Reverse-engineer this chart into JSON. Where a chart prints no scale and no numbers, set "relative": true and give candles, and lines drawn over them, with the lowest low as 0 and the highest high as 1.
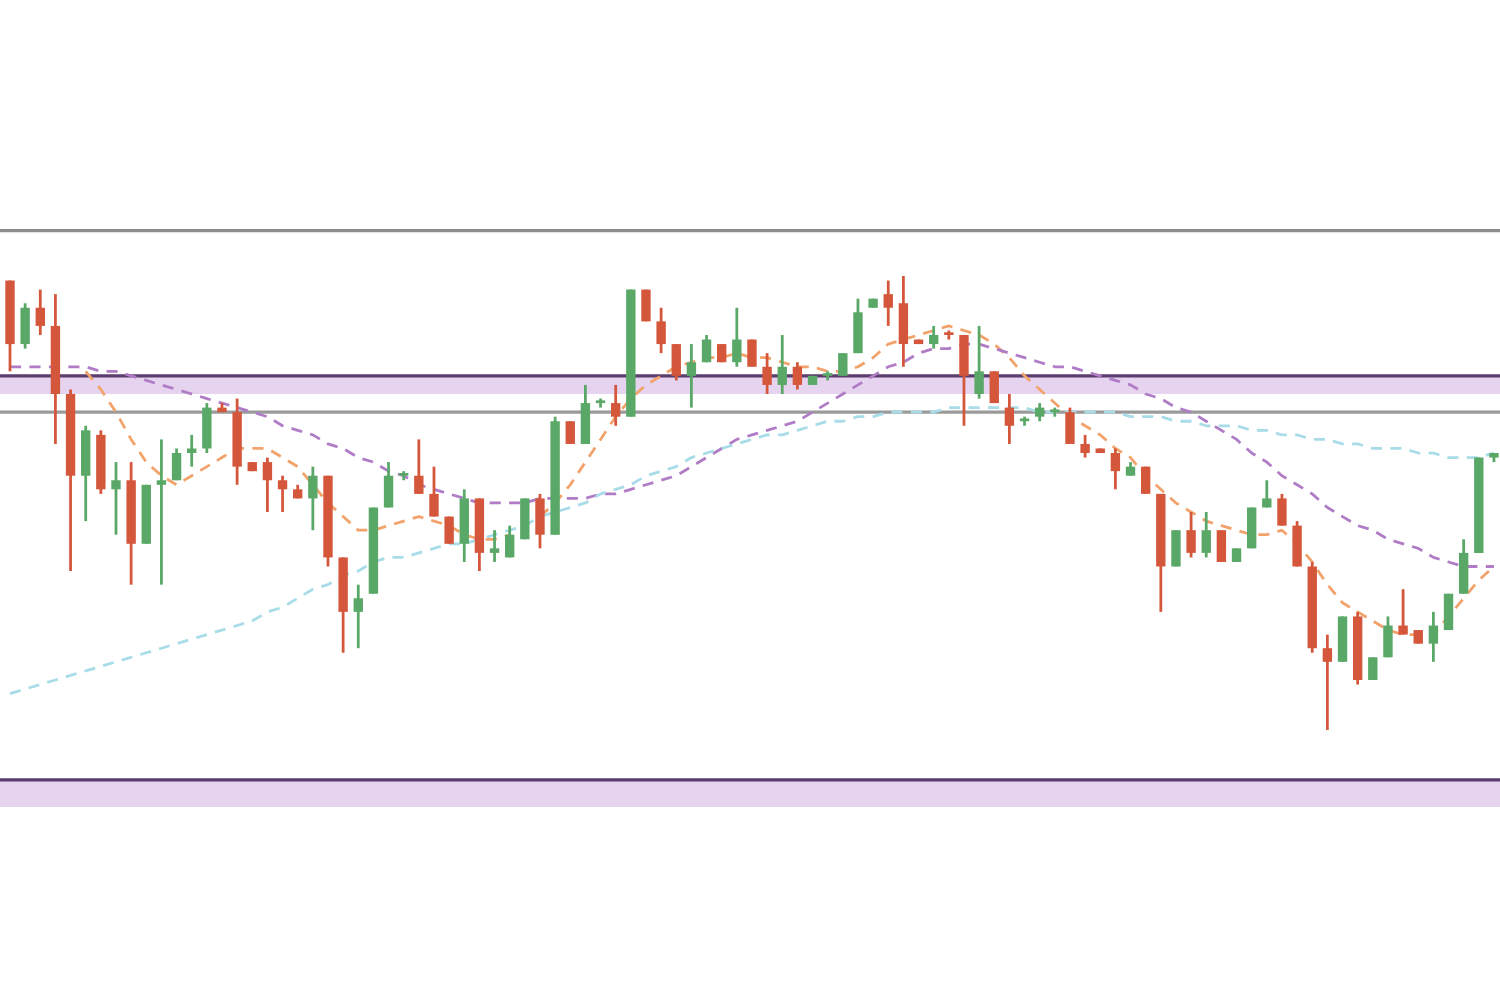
{
  "chart_data": {
    "type": "candlestick",
    "relative": true,
    "categories": [
      null,
      null,
      null,
      null,
      null,
      null,
      null,
      null,
      null,
      null,
      null,
      null,
      null,
      null,
      null,
      null,
      null,
      null,
      null,
      null,
      null,
      null,
      null,
      null,
      null,
      null,
      null,
      null,
      null,
      null,
      null,
      null,
      null,
      null,
      null,
      null,
      null,
      null,
      null,
      null,
      null,
      null,
      null,
      null,
      null,
      null,
      null,
      null,
      null,
      null,
      null,
      null,
      null,
      null,
      null,
      null,
      null,
      null,
      null,
      null,
      null,
      null,
      null,
      null,
      null,
      null,
      null,
      null,
      null,
      null,
      null,
      null,
      null,
      null,
      null,
      null,
      null,
      null,
      null,
      null,
      null,
      null,
      null,
      null,
      null,
      null,
      null,
      null,
      null,
      null,
      null,
      null,
      null,
      null,
      null,
      null,
      null,
      null,
      null
    ],
    "ohlc": [
      [
        0.99,
        0.99,
        0.79,
        0.85
      ],
      [
        0.85,
        0.94,
        0.84,
        0.93
      ],
      [
        0.93,
        0.97,
        0.87,
        0.89
      ],
      [
        0.89,
        0.96,
        0.63,
        0.74
      ],
      [
        0.74,
        0.75,
        0.35,
        0.56
      ],
      [
        0.56,
        0.67,
        0.46,
        0.66
      ],
      [
        0.65,
        0.66,
        0.52,
        0.53
      ],
      [
        0.53,
        0.59,
        0.43,
        0.55
      ],
      [
        0.55,
        0.59,
        0.32,
        0.41
      ],
      [
        0.41,
        0.54,
        0.41,
        0.54
      ],
      [
        0.54,
        0.64,
        0.32,
        0.55
      ],
      [
        0.55,
        0.62,
        0.55,
        0.61
      ],
      [
        0.61,
        0.65,
        0.58,
        0.62
      ],
      [
        0.62,
        0.72,
        0.61,
        0.71
      ],
      [
        0.71,
        0.72,
        0.7,
        0.7
      ],
      [
        0.7,
        0.73,
        0.54,
        0.58
      ],
      [
        0.59,
        0.59,
        0.57,
        0.57
      ],
      [
        0.59,
        0.6,
        0.48,
        0.55
      ],
      [
        0.55,
        0.56,
        0.48,
        0.53
      ],
      [
        0.53,
        0.54,
        0.51,
        0.51
      ],
      [
        0.51,
        0.58,
        0.44,
        0.56
      ],
      [
        0.56,
        0.56,
        0.36,
        0.38
      ],
      [
        0.38,
        0.38,
        0.17,
        0.26
      ],
      [
        0.26,
        0.32,
        0.18,
        0.29
      ],
      [
        0.3,
        0.49,
        0.3,
        0.49
      ],
      [
        0.49,
        0.59,
        0.49,
        0.56
      ],
      [
        0.56,
        0.57,
        0.55,
        0.56
      ],
      [
        0.56,
        0.64,
        0.52,
        0.52
      ],
      [
        0.52,
        0.58,
        0.47,
        0.47
      ],
      [
        0.47,
        0.47,
        0.41,
        0.41
      ],
      [
        0.41,
        0.53,
        0.37,
        0.51
      ],
      [
        0.51,
        0.51,
        0.35,
        0.39
      ],
      [
        0.39,
        0.44,
        0.37,
        0.4
      ],
      [
        0.38,
        0.45,
        0.38,
        0.43
      ],
      [
        0.42,
        0.51,
        0.42,
        0.51
      ],
      [
        0.51,
        0.52,
        0.4,
        0.43
      ],
      [
        0.43,
        0.69,
        0.43,
        0.68
      ],
      [
        0.68,
        0.68,
        0.63,
        0.63
      ],
      [
        0.63,
        0.76,
        0.63,
        0.72
      ],
      [
        0.72,
        0.73,
        0.71,
        0.72
      ],
      [
        0.72,
        0.76,
        0.67,
        0.69
      ],
      [
        0.69,
        0.97,
        0.69,
        0.97
      ],
      [
        0.97,
        0.97,
        0.9,
        0.9
      ],
      [
        0.9,
        0.93,
        0.83,
        0.85
      ],
      [
        0.85,
        0.85,
        0.77,
        0.78
      ],
      [
        0.78,
        0.85,
        0.71,
        0.81
      ],
      [
        0.81,
        0.87,
        0.81,
        0.86
      ],
      [
        0.85,
        0.85,
        0.81,
        0.81
      ],
      [
        0.81,
        0.93,
        0.8,
        0.86
      ],
      [
        0.86,
        0.86,
        0.8,
        0.8
      ],
      [
        0.8,
        0.83,
        0.74,
        0.76
      ],
      [
        0.76,
        0.87,
        0.74,
        0.8
      ],
      [
        0.8,
        0.81,
        0.75,
        0.76
      ],
      [
        0.76,
        0.78,
        0.76,
        0.78
      ],
      [
        0.78,
        0.79,
        0.77,
        0.78
      ],
      [
        0.78,
        0.83,
        0.78,
        0.83
      ],
      [
        0.83,
        0.95,
        0.83,
        0.92
      ],
      [
        0.93,
        0.95,
        0.93,
        0.95
      ],
      [
        0.96,
        0.99,
        0.89,
        0.93
      ],
      [
        0.94,
        1.0,
        0.8,
        0.85
      ],
      [
        0.86,
        0.86,
        0.85,
        0.85
      ],
      [
        0.85,
        0.89,
        0.84,
        0.87
      ],
      [
        0.87,
        0.88,
        0.86,
        0.87
      ],
      [
        0.87,
        0.87,
        0.67,
        0.78
      ],
      [
        0.74,
        0.89,
        0.73,
        0.79
      ],
      [
        0.79,
        0.79,
        0.72,
        0.72
      ],
      [
        0.71,
        0.74,
        0.63,
        0.67
      ],
      [
        0.68,
        0.69,
        0.67,
        0.68
      ],
      [
        0.69,
        0.72,
        0.68,
        0.71
      ],
      [
        0.7,
        0.71,
        0.69,
        0.7
      ],
      [
        0.7,
        0.71,
        0.63,
        0.63
      ],
      [
        0.63,
        0.65,
        0.6,
        0.61
      ],
      [
        0.62,
        0.62,
        0.61,
        0.61
      ],
      [
        0.61,
        0.62,
        0.53,
        0.57
      ],
      [
        0.56,
        0.59,
        0.56,
        0.58
      ],
      [
        0.58,
        0.58,
        0.52,
        0.52
      ],
      [
        0.52,
        0.52,
        0.26,
        0.36
      ],
      [
        0.36,
        0.44,
        0.36,
        0.44
      ],
      [
        0.44,
        0.48,
        0.38,
        0.39
      ],
      [
        0.39,
        0.48,
        0.38,
        0.44
      ],
      [
        0.44,
        0.44,
        0.37,
        0.37
      ],
      [
        0.37,
        0.4,
        0.37,
        0.4
      ],
      [
        0.4,
        0.49,
        0.4,
        0.49
      ],
      [
        0.49,
        0.55,
        0.49,
        0.51
      ],
      [
        0.51,
        0.52,
        0.45,
        0.45
      ],
      [
        0.45,
        0.46,
        0.36,
        0.36
      ],
      [
        0.36,
        0.37,
        0.17,
        0.18
      ],
      [
        0.18,
        0.21,
        0.0,
        0.15
      ],
      [
        0.15,
        0.25,
        0.15,
        0.25
      ],
      [
        0.25,
        0.26,
        0.1,
        0.11
      ],
      [
        0.11,
        0.16,
        0.11,
        0.16
      ],
      [
        0.16,
        0.25,
        0.16,
        0.23
      ],
      [
        0.23,
        0.31,
        0.21,
        0.21
      ],
      [
        0.22,
        0.22,
        0.19,
        0.19
      ],
      [
        0.19,
        0.26,
        0.15,
        0.23
      ],
      [
        0.22,
        0.3,
        0.22,
        0.3
      ],
      [
        0.3,
        0.42,
        0.3,
        0.39
      ],
      [
        0.39,
        0.6,
        0.39,
        0.6
      ],
      [
        0.6,
        0.61,
        0.59,
        0.61
      ]
    ],
    "colors": [
      "#d5573b",
      "#5aa867",
      "#d5573b",
      "#d5573b",
      "#d5573b",
      "#5aa867",
      "#d5573b",
      "#5aa867",
      "#d5573b",
      "#5aa867",
      "#5aa867",
      "#5aa867",
      "#5aa867",
      "#5aa867",
      "#d5573b",
      "#d5573b",
      "#d5573b",
      "#d5573b",
      "#d5573b",
      "#d5573b",
      "#5aa867",
      "#d5573b",
      "#d5573b",
      "#5aa867",
      "#5aa867",
      "#5aa867",
      "#5aa867",
      "#d5573b",
      "#d5573b",
      "#d5573b",
      "#5aa867",
      "#d5573b",
      "#5aa867",
      "#5aa867",
      "#5aa867",
      "#d5573b",
      "#5aa867",
      "#d5573b",
      "#5aa867",
      "#5aa867",
      "#d5573b",
      "#5aa867",
      "#d5573b",
      "#d5573b",
      "#d5573b",
      "#5aa867",
      "#5aa867",
      "#d5573b",
      "#5aa867",
      "#d5573b",
      "#d5573b",
      "#5aa867",
      "#d5573b",
      "#5aa867",
      "#5aa867",
      "#5aa867",
      "#5aa867",
      "#5aa867",
      "#d5573b",
      "#d5573b",
      "#d5573b",
      "#5aa867",
      "#d5573b",
      "#d5573b",
      "#5aa867",
      "#d5573b",
      "#d5573b",
      "#5aa867",
      "#5aa867",
      "#5aa867",
      "#d5573b",
      "#d5573b",
      "#d5573b",
      "#d5573b",
      "#5aa867",
      "#d5573b",
      "#d5573b",
      "#5aa867",
      "#d5573b",
      "#5aa867",
      "#d5573b",
      "#5aa867",
      "#5aa867",
      "#5aa867",
      "#d5573b",
      "#d5573b",
      "#d5573b",
      "#d5573b",
      "#5aa867",
      "#d5573b",
      "#5aa867",
      "#5aa867",
      "#d5573b",
      "#d5573b",
      "#5aa867",
      "#5aa867",
      "#5aa867",
      "#5aa867",
      "#5aa867"
    ],
    "series": [
      {
        "type": "line",
        "color": "#f2a36b",
        "line_style": "dashed",
        "values": [
          null,
          null,
          null,
          null,
          null,
          0.79,
          0.75,
          0.7,
          0.64,
          0.59,
          0.56,
          0.54,
          0.56,
          0.58,
          0.6,
          0.62,
          0.62,
          0.62,
          0.6,
          0.58,
          0.54,
          0.5,
          0.47,
          0.44,
          0.44,
          0.45,
          0.46,
          0.47,
          0.46,
          0.45,
          0.43,
          0.42,
          0.42,
          0.43,
          null,
          0.47,
          0.5,
          0.54,
          0.59,
          0.64,
          0.69,
          0.73,
          0.76,
          0.78,
          0.8,
          0.81,
          0.82,
          0.82,
          0.83,
          0.82,
          0.82,
          0.81,
          0.8,
          0.8,
          0.79,
          0.79,
          0.8,
          0.82,
          0.85,
          0.86,
          0.87,
          0.88,
          0.89,
          0.88,
          0.87,
          0.85,
          0.82,
          0.78,
          0.75,
          0.72,
          0.69,
          0.67,
          0.65,
          0.62,
          0.6,
          0.56,
          0.53,
          0.5,
          0.48,
          0.46,
          0.45,
          0.44,
          0.43,
          0.43,
          0.44,
          0.41,
          0.37,
          0.32,
          0.28,
          0.26,
          0.24,
          0.22,
          0.21,
          0.21,
          0.21,
          0.25,
          0.29,
          0.33,
          0.36
        ]
      },
      {
        "type": "line",
        "color": "#b07cc6",
        "line_style": "dashed",
        "values": [
          0.8,
          0.8,
          0.8,
          0.8,
          0.8,
          0.8,
          0.79,
          0.79,
          0.78,
          0.77,
          0.76,
          0.75,
          0.74,
          0.73,
          0.72,
          0.71,
          0.7,
          0.69,
          0.67,
          0.66,
          0.65,
          0.63,
          0.62,
          0.6,
          0.59,
          0.57,
          0.56,
          0.54,
          0.53,
          0.52,
          0.51,
          0.5,
          0.5,
          0.5,
          0.5,
          0.51,
          0.51,
          0.51,
          0.51,
          0.52,
          0.52,
          0.53,
          0.54,
          0.55,
          0.56,
          0.58,
          0.6,
          0.62,
          0.64,
          0.65,
          0.66,
          0.67,
          0.68,
          0.7,
          0.72,
          0.74,
          0.76,
          0.78,
          0.8,
          0.81,
          0.83,
          0.84,
          0.84,
          0.85,
          0.85,
          0.84,
          0.83,
          0.82,
          0.81,
          0.8,
          0.8,
          0.79,
          0.78,
          0.77,
          0.76,
          0.74,
          0.73,
          0.71,
          0.7,
          0.68,
          0.66,
          0.64,
          0.61,
          0.59,
          0.56,
          0.54,
          0.52,
          0.49,
          0.47,
          0.45,
          0.44,
          0.42,
          0.41,
          0.4,
          0.38,
          0.37,
          0.36,
          0.36,
          0.36
        ]
      },
      {
        "type": "line",
        "color": "#a8dce8",
        "line_style": "dashed",
        "values": [
          0.08,
          0.09,
          0.1,
          0.11,
          0.12,
          0.13,
          0.14,
          0.15,
          0.16,
          0.17,
          0.18,
          0.19,
          0.2,
          0.21,
          0.22,
          0.23,
          0.24,
          0.26,
          0.27,
          0.29,
          0.31,
          0.32,
          0.34,
          0.35,
          0.37,
          0.38,
          0.38,
          0.39,
          0.4,
          0.41,
          0.41,
          0.42,
          0.43,
          0.44,
          0.45,
          0.47,
          0.48,
          0.49,
          0.5,
          0.52,
          0.53,
          0.54,
          0.56,
          0.57,
          0.58,
          0.6,
          0.61,
          0.62,
          0.63,
          0.64,
          0.65,
          0.65,
          0.66,
          0.67,
          0.68,
          0.68,
          0.69,
          0.69,
          0.7,
          0.7,
          0.7,
          0.7,
          0.71,
          0.71,
          0.71,
          0.71,
          0.71,
          0.71,
          0.7,
          0.7,
          0.7,
          0.7,
          0.7,
          0.7,
          0.69,
          0.69,
          0.69,
          0.68,
          0.68,
          0.67,
          0.67,
          0.67,
          0.66,
          0.66,
          0.65,
          0.65,
          0.64,
          0.64,
          0.63,
          0.63,
          0.62,
          0.62,
          0.62,
          0.61,
          0.61,
          0.6,
          0.6,
          0.6,
          0.61
        ]
      }
    ],
    "bands": [
      {
        "axis": "y",
        "from": 0.74,
        "to": 0.78,
        "color": "#e6d3f0"
      },
      {
        "axis": "y",
        "from": -0.17,
        "to": -0.11,
        "color": "#e6d3f0"
      }
    ],
    "ref_lines": [
      {
        "axis": "y",
        "value": 1.1,
        "color": "#8c8c8c"
      },
      {
        "axis": "y",
        "value": 0.78,
        "color": "#5b3d6e"
      },
      {
        "axis": "y",
        "value": 0.7,
        "color": "#9a9a9a"
      },
      {
        "axis": "y",
        "value": -0.11,
        "color": "#5b3d6e"
      }
    ]
  }
}
